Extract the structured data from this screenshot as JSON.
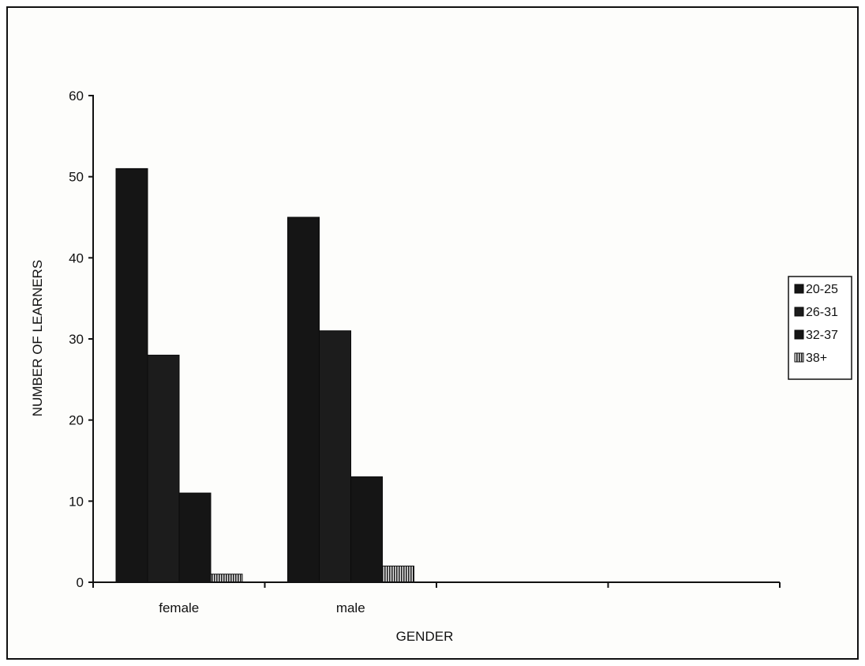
{
  "chart_data": {
    "type": "bar",
    "categories": [
      "female",
      "male",
      "",
      ""
    ],
    "series": [
      {
        "name": "20-25",
        "values": [
          51,
          45,
          null,
          null
        ],
        "color": "#151515"
      },
      {
        "name": "26-31",
        "values": [
          28,
          31,
          null,
          null
        ],
        "color": "#1c1c1c"
      },
      {
        "name": "32-37",
        "values": [
          11,
          13,
          null,
          null
        ],
        "color": "#151515"
      },
      {
        "name": "38+",
        "values": [
          1,
          2,
          null,
          null
        ],
        "color": "#9a9a9a",
        "pattern": "vertical-stripes"
      }
    ],
    "title": "",
    "xlabel": "GENDER",
    "ylabel": "NUMBER OF LEARNERS",
    "ylim": [
      0,
      60
    ],
    "yticks": [
      0,
      10,
      20,
      30,
      40,
      50,
      60
    ],
    "grid": false,
    "legend_position": "right"
  }
}
